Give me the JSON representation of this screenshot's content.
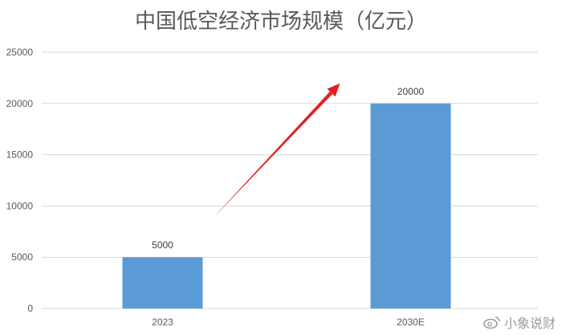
{
  "chart_data": {
    "type": "bar",
    "title": "中国低空经济市场规模（亿元）",
    "categories": [
      "2023",
      "2030E"
    ],
    "values": [
      5000,
      20000
    ],
    "data_labels": [
      "5000",
      "20000"
    ],
    "ylim": [
      0,
      25000
    ],
    "yticks": [
      0,
      5000,
      10000,
      15000,
      20000,
      25000
    ],
    "ytick_labels": [
      "0",
      "5000",
      "10000",
      "15000",
      "20000",
      "25000"
    ],
    "xlabel": "",
    "ylabel": "",
    "grid": true,
    "annotation": "red-arrow-up-right",
    "colors": {
      "bar": "#5b9bd5",
      "grid": "#d9d9d9",
      "arrow": "#e02020",
      "text": "#595959"
    }
  },
  "watermark": {
    "text": "小象说财",
    "icon": "weibo-icon"
  }
}
